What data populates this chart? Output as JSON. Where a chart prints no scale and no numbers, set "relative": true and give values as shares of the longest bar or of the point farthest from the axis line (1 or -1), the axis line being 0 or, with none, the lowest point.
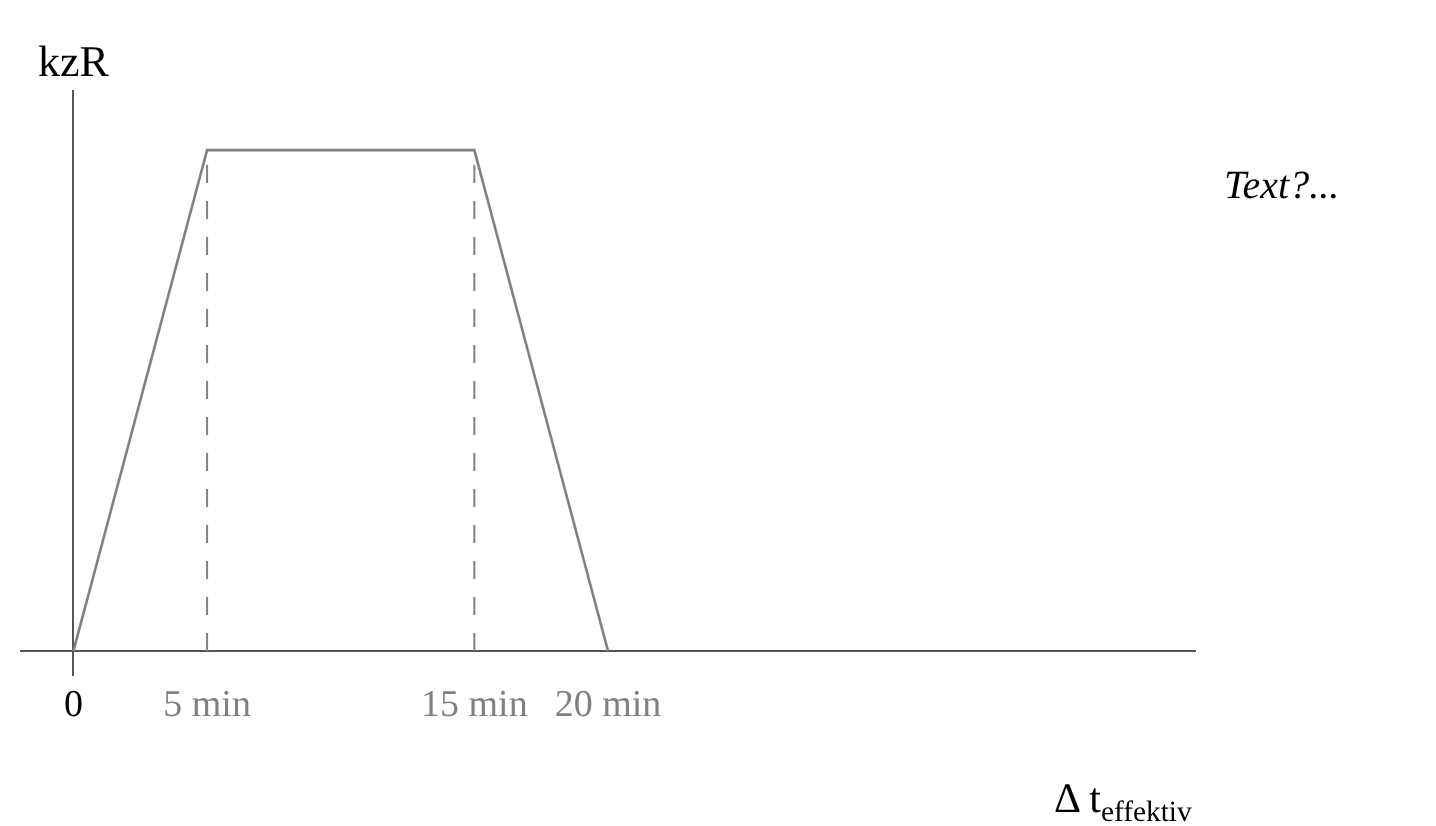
{
  "chart_data": {
    "type": "line",
    "relative": true,
    "ylabel": "kzR",
    "xlabel": "Δ t$_{effektiv}$",
    "x": [
      0,
      5,
      15,
      20
    ],
    "series": [
      {
        "color": "#808080",
        "values": [
          0,
          1,
          1,
          0
        ]
      }
    ],
    "xlim": [
      -2,
      42
    ],
    "xticks": [
      {
        "value": 0,
        "label": "0"
      },
      {
        "value": 5,
        "label": "5 min"
      },
      {
        "value": 15,
        "label": "15 min"
      },
      {
        "value": 20,
        "label": "20 min"
      }
    ],
    "ref_lines": [
      {
        "axis": "x",
        "value": 5,
        "color": "#808080",
        "line_style": "dashed"
      },
      {
        "axis": "x",
        "value": 15,
        "color": "#808080",
        "line_style": "dashed"
      }
    ],
    "annotations": [
      "Text?..."
    ],
    "marker": "none",
    "line_style": "solid"
  }
}
